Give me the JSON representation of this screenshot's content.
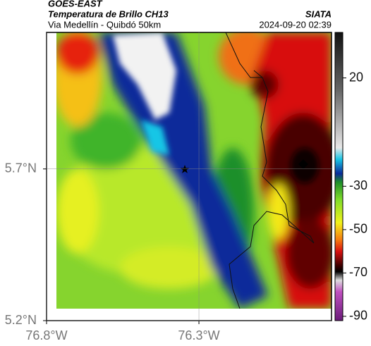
{
  "header": {
    "title": "GOES-EAST",
    "subtitle": "Temperatura de Brillo CH13",
    "source": "SIATA",
    "location": "Via Medellín - Quibdó 50km",
    "timestamp": "2024-09-20 02:39"
  },
  "map": {
    "xlim": [
      -76.8,
      -75.865
    ],
    "ylim": [
      5.2,
      6.15
    ],
    "xticks": [
      {
        "value": -76.8,
        "label": "76.8°W"
      },
      {
        "value": -76.3,
        "label": "76.3°W"
      }
    ],
    "yticks": [
      {
        "value": 5.2,
        "label": "5.2°N"
      },
      {
        "value": 5.7,
        "label": "5.7°N"
      }
    ],
    "grid": true
  },
  "colorbar": {
    "lim": [
      -92,
      41
    ],
    "ticks": [
      20,
      -30,
      -50,
      -70,
      -90
    ]
  }
}
